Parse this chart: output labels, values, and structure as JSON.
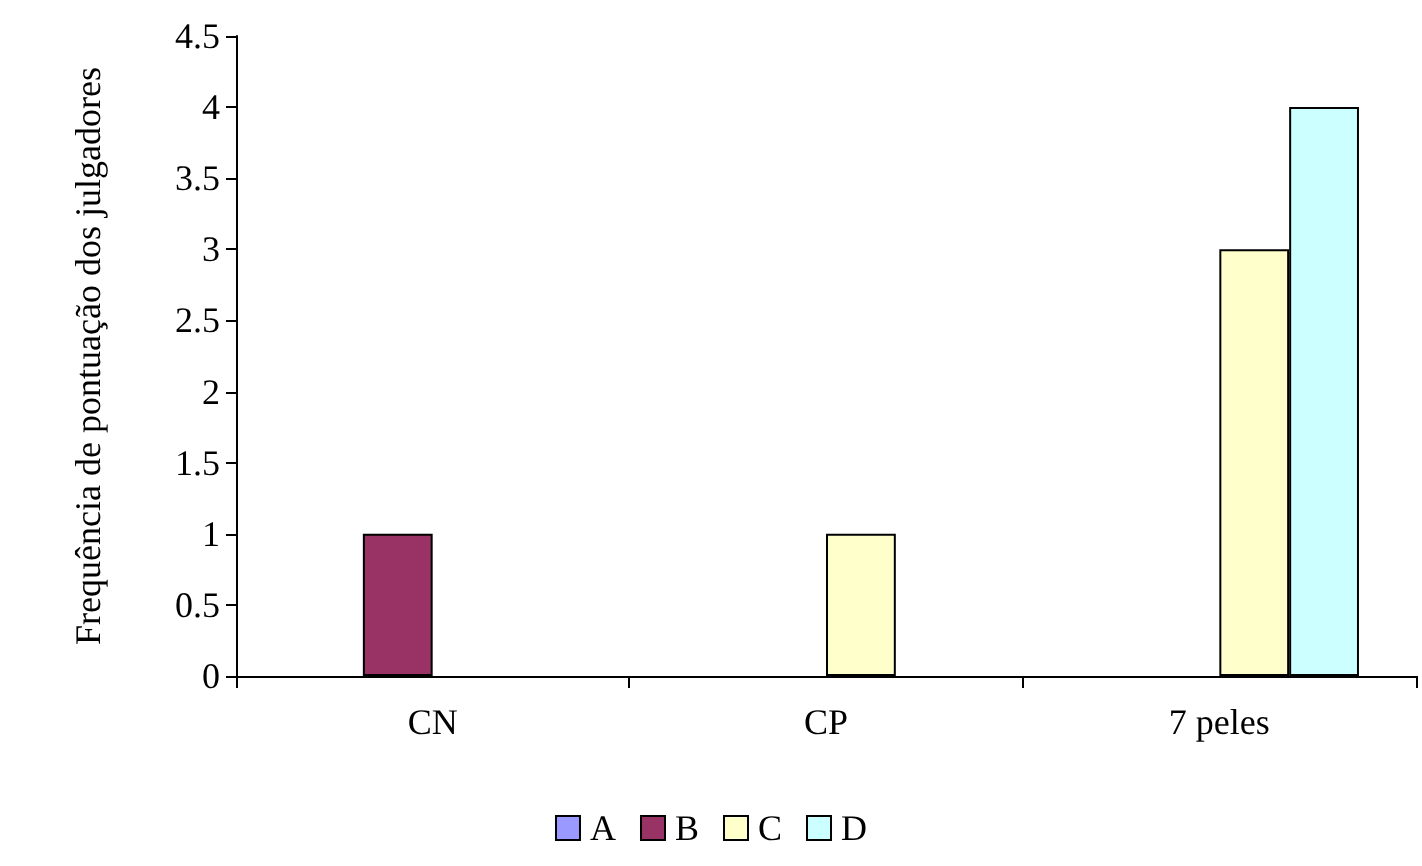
{
  "chart_data": {
    "type": "bar",
    "ylabel": "Frequência de pontuação dos julgadores",
    "categories": [
      "CN",
      "CP",
      "7 peles"
    ],
    "series": [
      {
        "name": "A",
        "color": "#9999ff",
        "values": [
          0,
          0,
          0
        ]
      },
      {
        "name": "B",
        "color": "#993366",
        "values": [
          1,
          0,
          0
        ]
      },
      {
        "name": "C",
        "color": "#ffffcc",
        "values": [
          0,
          1,
          3
        ]
      },
      {
        "name": "D",
        "color": "#ccffff",
        "values": [
          0,
          0,
          4
        ]
      }
    ],
    "ylim": [
      0,
      4.5
    ],
    "yticks": [
      0,
      0.5,
      1,
      1.5,
      2,
      2.5,
      3,
      3.5,
      4,
      4.5
    ],
    "grid": false,
    "legend": "bottom"
  }
}
